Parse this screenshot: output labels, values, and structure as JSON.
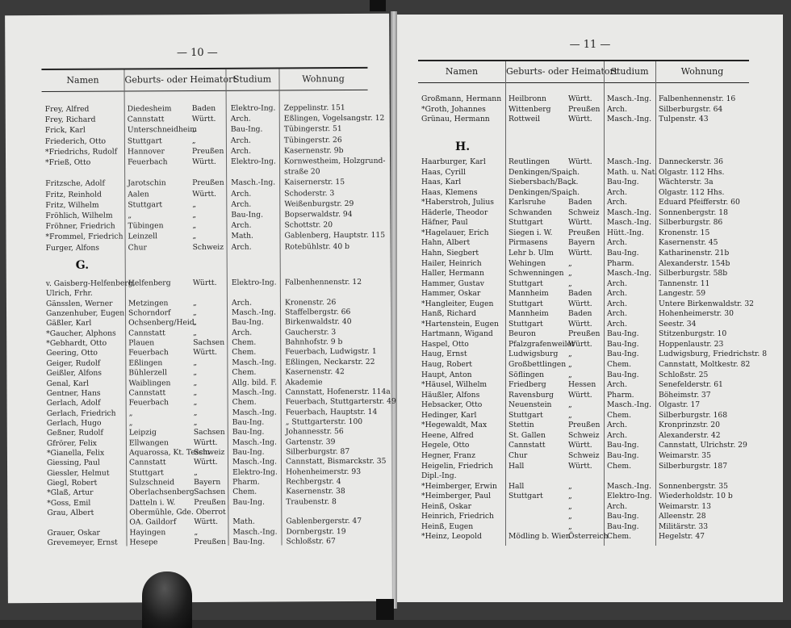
{
  "left_page": {
    "page_number": "— 10 —",
    "headers": [
      "Namen",
      "Geburts- oder Heimatort",
      "Studium",
      "Wohnung"
    ],
    "section_letter": "G.",
    "rows_f": [
      [
        "Frey, Alfred",
        "Diedesheim",
        "Baden",
        "Elektro-Ing.",
        "Zeppelinstr. 151"
      ],
      [
        "Frey, Richard",
        "Cannstatt",
        "Württ.",
        "Arch.",
        "Eßlingen, Vogelsangstr. 12"
      ],
      [
        "Frick, Karl",
        "Unterschneidheim",
        "„",
        "Bau-Ing.",
        "Tübingerstr. 51"
      ],
      [
        "Friederich, Otto",
        "Stuttgart",
        "„",
        "Arch.",
        "Tübingerstr. 26"
      ],
      [
        "*Friedrichs, Rudolf",
        "Hannover",
        "Preußen",
        "Arch.",
        "Kasernenstr. 9b"
      ],
      [
        "*Frieß, Otto",
        "Feuerbach",
        "Württ.",
        "Elektro-Ing.",
        "Kornwestheim, Holzgrund-"
      ],
      [
        "",
        "",
        "",
        "",
        "straße 20"
      ],
      [
        "Fritzsche, Adolf",
        "Jarotschin",
        "Preußen",
        "Masch.-Ing.",
        "Kaisernerstr. 15"
      ],
      [
        "Fritz, Reinhold",
        "Aalen",
        "Württ.",
        "Arch.",
        "Schoderstr. 3"
      ],
      [
        "Fritz, Wilhelm",
        "Stuttgart",
        "„",
        "Arch.",
        "Weißenburgstr. 29"
      ],
      [
        "Fröhlich, Wilhelm",
        "„",
        "„",
        "Bau-Ing.",
        "Bopserwaldstr. 94"
      ],
      [
        "Fröhner, Friedrich",
        "Tübingen",
        "„",
        "Arch.",
        "Schottstr. 20"
      ],
      [
        "*Frommel, Friedrich",
        "Leinzell",
        "„",
        "Math.",
        "Gablenberg, Hauptstr. 115"
      ],
      [
        "Furger, Alfons",
        "Chur",
        "Schweiz",
        "Arch.",
        "Rotebühlstr. 40 b"
      ]
    ],
    "rows_g": [
      [
        "v. Gaisberg-Helfenberg,",
        "Helfenberg",
        "Württ.",
        "Elektro-Ing.",
        "Falbenhennenstr. 12"
      ],
      [
        "Ulrich, Frhr.",
        "",
        "",
        "",
        ""
      ],
      [
        "Gänsslen, Werner",
        "Metzingen",
        "„",
        "Arch.",
        "Kronenstr. 26"
      ],
      [
        "Ganzenhuber, Eugen",
        "Schorndorf",
        "„",
        "Masch.-Ing.",
        "Staffelbergstr. 66"
      ],
      [
        "Gäßler, Karl",
        "Ochsenberg/Heid.",
        "„",
        "Bau-Ing.",
        "Birkenwaldstr. 40"
      ],
      [
        "*Gaucher, Alphons",
        "Cannstatt",
        "„",
        "Arch.",
        "Gaucherstr. 3"
      ],
      [
        "*Gebhardt, Otto",
        "Plauen",
        "Sachsen",
        "Chem.",
        "Bahnhofstr. 9 b"
      ],
      [
        "Geering, Otto",
        "Feuerbach",
        "Württ.",
        "Chem.",
        "Feuerbach, Ludwigstr. 1"
      ],
      [
        "Geiger, Rudolf",
        "Eßlingen",
        "„",
        "Masch.-Ing.",
        "Eßlingen, Neckarstr. 22"
      ],
      [
        "Geißler, Alfons",
        "Bühlerzell",
        "„",
        "Chem.",
        "Kasernenstr. 42"
      ],
      [
        "Genal, Karl",
        "Waiblingen",
        "„",
        "Allg. bild. F.",
        "Akademie"
      ],
      [
        "Gentner, Hans",
        "Cannstatt",
        "„",
        "Masch.-Ing.",
        "Cannstatt, Hofenerstr. 114a"
      ],
      [
        "Gerlach, Adolf",
        "Feuerbach",
        "„",
        "Chem.",
        "Feuerbach, Stuttgarterstr. 49"
      ],
      [
        "Gerlach, Friedrich",
        "„",
        "„",
        "Masch.-Ing.",
        "Feuerbach, Hauptstr. 14"
      ],
      [
        "Gerlach, Hugo",
        "„",
        "„",
        "Bau-Ing.",
        "„ Stuttgarterstr. 100"
      ],
      [
        "Geßner, Rudolf",
        "Leipzig",
        "Sachsen",
        "Bau-Ing.",
        "Johannesstr. 56"
      ],
      [
        "Gfrörer, Felix",
        "Ellwangen",
        "Württ.",
        "Masch.-Ing.",
        "Gartenstr. 39"
      ],
      [
        "*Gianella, Felix",
        "Aquarossa, Kt. Tessin",
        "Schweiz",
        "Bau-Ing.",
        "Silberburgstr. 87"
      ],
      [
        "Giessing, Paul",
        "Cannstatt",
        "Württ.",
        "Masch.-Ing.",
        "Cannstatt, Bismarckstr. 35"
      ],
      [
        "Giessler, Helmut",
        "Stuttgart",
        "„",
        "Elektro-Ing.",
        "Hohenheimerstr. 93"
      ],
      [
        "Giegl, Robert",
        "Sulzschneid",
        "Bayern",
        "Pharm.",
        "Rechbergstr. 4"
      ],
      [
        "*Glaß, Artur",
        "Oberlachsenberg",
        "Sachsen",
        "Chem.",
        "Kasernenstr. 38"
      ],
      [
        "*Goss, Emil",
        "Datteln i. W.",
        "Preußen",
        "Bau-Ing.",
        "Traubenstr. 8"
      ],
      [
        "Grau, Albert",
        "Obermühle, Gde. Oberrot",
        "",
        "",
        ""
      ],
      [
        "",
        "OA. Gaildorf",
        "Württ.",
        "Math.",
        "Gablenbergerstr. 47"
      ],
      [
        "Grauer, Oskar",
        "Hayingen",
        "„",
        "Masch.-Ing.",
        "Dornbergstr. 19"
      ],
      [
        "Grevemeyer, Ernst",
        "Hesepe",
        "Preußen",
        "Bau-Ing.",
        "Schloßstr. 67"
      ]
    ]
  },
  "right_page": {
    "page_number": "— 11 —",
    "headers": [
      "Namen",
      "Geburts- oder Heimatort",
      "Studium",
      "Wohnung"
    ],
    "section_letter": "H.",
    "rows_g": [
      [
        "Großmann, Hermann",
        "Heilbronn",
        "Württ.",
        "Masch.-Ing.",
        "Falbenhennenstr. 16"
      ],
      [
        "*Groth, Johannes",
        "Wittenberg",
        "Preußen",
        "Arch.",
        "Silberburgstr. 64"
      ],
      [
        "Grünau, Hermann",
        "Rottweil",
        "Württ.",
        "Masch.-Ing.",
        "Tulpenstr. 43"
      ]
    ],
    "rows_h": [
      [
        "Haarburger, Karl",
        "Reutlingen",
        "Württ.",
        "Masch.-Ing.",
        "Danneckerstr. 36"
      ],
      [
        "Haas, Cyrill",
        "Denkingen/Spaich.",
        "„",
        "Math. u. Nat.",
        "Olgastr. 112 Hhs."
      ],
      [
        "Haas, Karl",
        "Siebersbach/Back.",
        "„",
        "Bau-Ing.",
        "Wächterstr. 3a"
      ],
      [
        "Haas, Klemens",
        "Denkingen/Spaich.",
        "„",
        "Arch.",
        "Olgastr. 112 Hhs."
      ],
      [
        "*Haberstroh, Julius",
        "Karlsruhe",
        "Baden",
        "Arch.",
        "Eduard Pfeifferstr. 60"
      ],
      [
        "Häderle, Theodor",
        "Schwanden",
        "Schweiz",
        "Masch.-Ing.",
        "Sonnenbergstr. 18"
      ],
      [
        "Häfner, Paul",
        "Stuttgart",
        "Württ.",
        "Masch.-Ing.",
        "Silberburgstr. 86"
      ],
      [
        "*Hagelauer, Erich",
        "Siegen i. W.",
        "Preußen",
        "Hütt.-Ing.",
        "Kronenstr. 15"
      ],
      [
        "Hahn, Albert",
        "Pirmasens",
        "Bayern",
        "Arch.",
        "Kasernenstr. 45"
      ],
      [
        "Hahn, Siegbert",
        "Lehr b. Ulm",
        "Württ.",
        "Bau-Ing.",
        "Katharinenstr. 21b"
      ],
      [
        "Hailer, Heinrich",
        "Wehingen",
        "„",
        "Pharm.",
        "Alexanderstr. 154b"
      ],
      [
        "Haller, Hermann",
        "Schwenningen",
        "„",
        "Masch.-Ing.",
        "Silberburgstr. 58b"
      ],
      [
        "Hammer, Gustav",
        "Stuttgart",
        "„",
        "Arch.",
        "Tannenstr. 11"
      ],
      [
        "Hammer, Oskar",
        "Mannheim",
        "Baden",
        "Arch.",
        "Langestr. 59"
      ],
      [
        "*Hangleiter, Eugen",
        "Stuttgart",
        "Württ.",
        "Arch.",
        "Untere Birkenwaldstr. 32"
      ],
      [
        "Hanß, Richard",
        "Mannheim",
        "Baden",
        "Arch.",
        "Hohenheimerstr. 30"
      ],
      [
        "*Hartenstein, Eugen",
        "Stuttgart",
        "Württ.",
        "Arch.",
        "Seestr. 34"
      ],
      [
        "Hartmann, Wigand",
        "Beuron",
        "Preußen",
        "Bau-Ing.",
        "Stitzenburgstr. 10"
      ],
      [
        "Haspel, Otto",
        "Pfalzgrafenweiler",
        "Württ.",
        "Bau-Ing.",
        "Hoppenlaustr. 23"
      ],
      [
        "Haug, Ernst",
        "Ludwigsburg",
        "„",
        "Bau-Ing.",
        "Ludwigsburg, Friedrichstr. 8"
      ],
      [
        "Haug, Robert",
        "Großbettlingen",
        "„",
        "Chem.",
        "Cannstatt, Moltkestr. 82"
      ],
      [
        "Haupt, Anton",
        "Söflingen",
        "„",
        "Bau-Ing.",
        "Schloßstr. 25"
      ],
      [
        "*Häusel, Wilhelm",
        "Friedberg",
        "Hessen",
        "Arch.",
        "Senefelderstr. 61"
      ],
      [
        "Häußler, Alfons",
        "Ravensburg",
        "Württ.",
        "Pharm.",
        "Böheimstr. 37"
      ],
      [
        "Hebsacker, Otto",
        "Neuenstein",
        "„",
        "Masch.-Ing.",
        "Olgastr. 17"
      ],
      [
        "Hedinger, Karl",
        "Stuttgart",
        "„",
        "Chem.",
        "Silberburgstr. 168"
      ],
      [
        "*Hegewaldt, Max",
        "Stettin",
        "Preußen",
        "Arch.",
        "Kronprinzstr. 20"
      ],
      [
        "Heene, Alfred",
        "St. Gallen",
        "Schweiz",
        "Arch.",
        "Alexanderstr. 42"
      ],
      [
        "Hegele, Otto",
        "Cannstatt",
        "Württ.",
        "Bau-Ing.",
        "Cannstatt, Ulrichstr. 29"
      ],
      [
        "Hegner, Franz",
        "Chur",
        "Schweiz",
        "Bau-Ing.",
        "Weimarstr. 35"
      ],
      [
        "Heigelin, Friedrich",
        "Hall",
        "Württ.",
        "Chem.",
        "Silberburgstr. 187"
      ],
      [
        "Dipl.-Ing.",
        "",
        "",
        "",
        ""
      ],
      [
        "*Heimberger, Erwin",
        "Hall",
        "„",
        "Masch.-Ing.",
        "Sonnenbergstr. 35"
      ],
      [
        "*Heimberger, Paul",
        "Stuttgart",
        "„",
        "Elektro-Ing.",
        "Wiederholdstr. 10 b"
      ],
      [
        "Heinß, Oskar",
        "",
        "„",
        "Arch.",
        "Weimarstr. 13"
      ],
      [
        "Heinrich, Friedrich",
        "",
        "„",
        "Bau-Ing.",
        "Alleenstr. 28"
      ],
      [
        "Heinß, Eugen",
        "",
        "„",
        "Bau-Ing.",
        "Militärstr. 33"
      ],
      [
        "*Heinz, Leopold",
        "Mödling b. Wien",
        "Österreich",
        "Chem.",
        "Hegelstr. 47"
      ]
    ]
  }
}
